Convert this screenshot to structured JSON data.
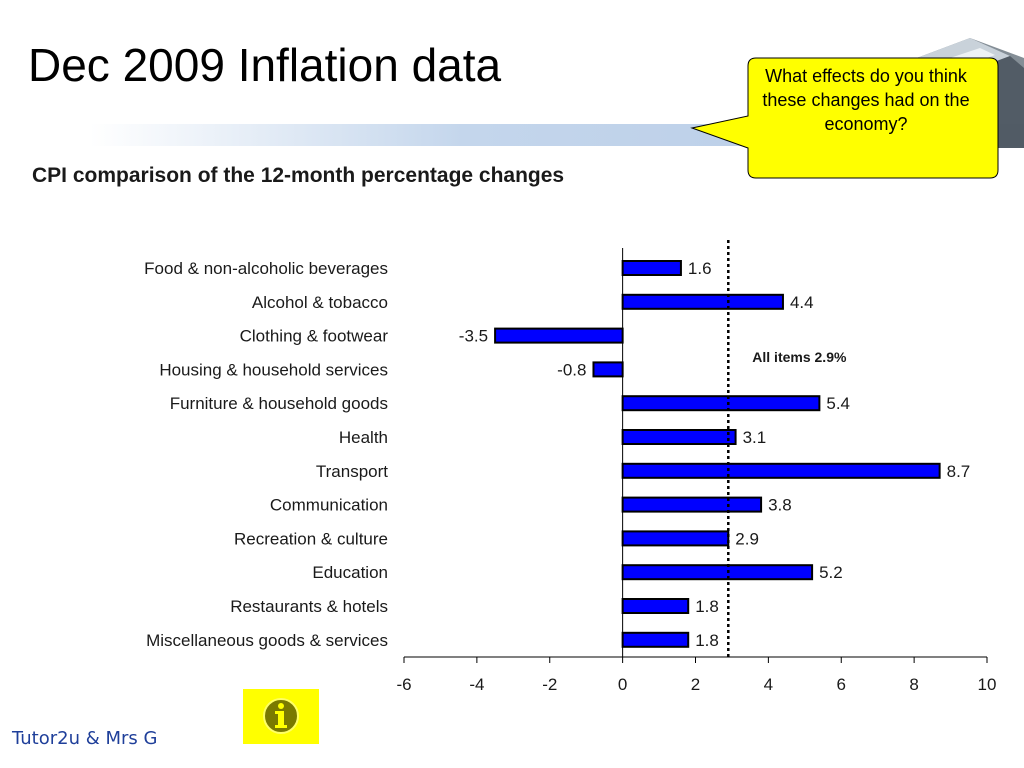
{
  "slide": {
    "title": "Dec 2009 Inflation data",
    "callout_text": "What effects do you think these changes had on the economy?",
    "footer": "Tutor2u & Mrs G"
  },
  "colors": {
    "bar_fill": "#0000ff",
    "bar_stroke": "#000000",
    "callout_fill": "#ffff00",
    "footer_text": "#1f3f9a",
    "info_button": "#ffff00"
  },
  "icons": {
    "info": "info-icon",
    "decor": "cube-graphic-icon"
  },
  "chart_data": {
    "type": "bar",
    "orientation": "horizontal",
    "title": "CPI comparison of the 12-month percentage changes",
    "categories": [
      "Food & non-alcoholic beverages",
      "Alcohol & tobacco",
      "Clothing & footwear",
      "Housing & household services",
      "Furniture & household goods",
      "Health",
      "Transport",
      "Communication",
      "Recreation & culture",
      "Education",
      "Restaurants & hotels",
      "Miscellaneous goods & services"
    ],
    "values": [
      1.6,
      4.4,
      -3.5,
      -0.8,
      5.4,
      3.1,
      8.7,
      3.8,
      2.9,
      5.2,
      1.8,
      1.8
    ],
    "value_labels": [
      "1.6",
      "4.4",
      "-3.5",
      "-0.8",
      "5.4",
      "3.1",
      "8.7",
      "3.8",
      "2.9",
      "5.2",
      "1.8",
      "1.8"
    ],
    "xlim": [
      -6,
      10
    ],
    "xticks": [
      -6,
      -4,
      -2,
      0,
      2,
      4,
      6,
      8,
      10
    ],
    "reference_line": {
      "value": 2.9,
      "label": "All items 2.9%",
      "style": "dotted"
    },
    "xlabel": "",
    "ylabel": "",
    "grid": false,
    "legend": "none"
  }
}
